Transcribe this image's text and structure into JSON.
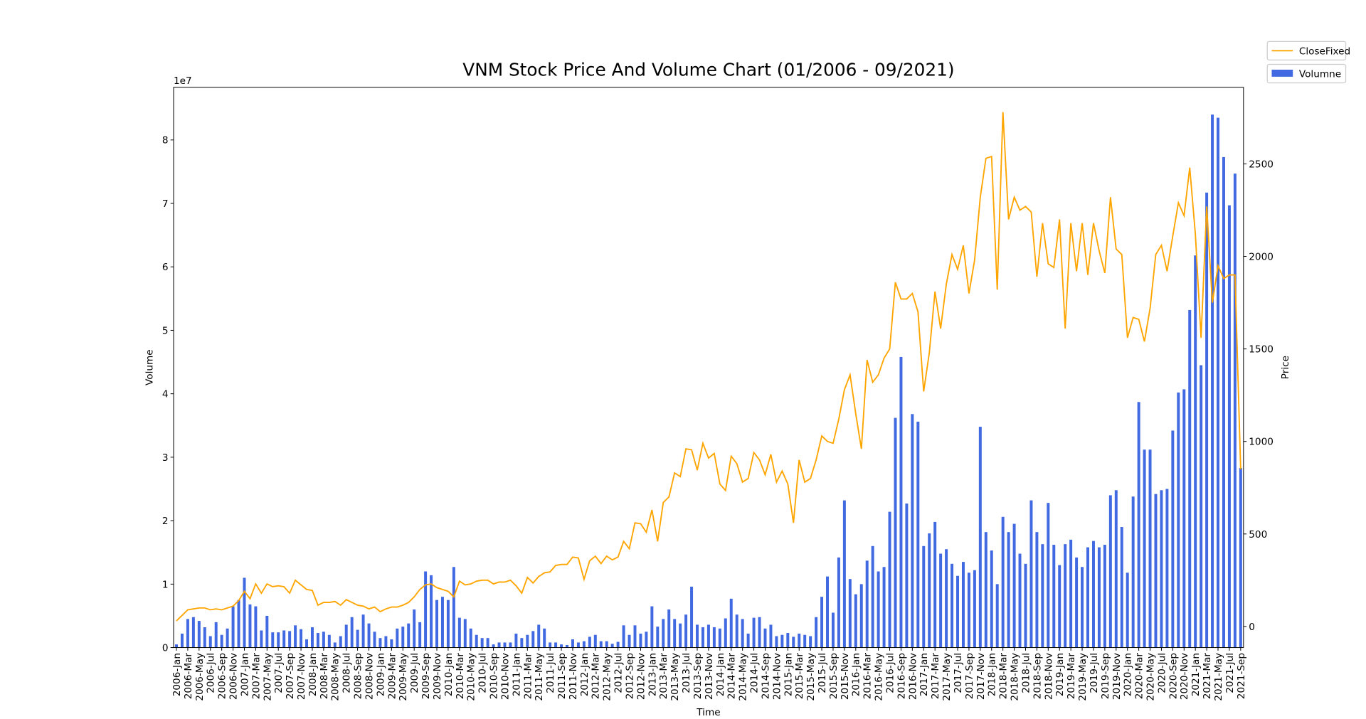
{
  "chart_data": {
    "type": "bar",
    "title": "VNM Stock Price And Volume Chart (01/2006 - 09/2021)",
    "xlabel": "Time",
    "ylabel": "Volume",
    "y2label": "Price",
    "y_offset_label": "1e7",
    "categories": [
      "2006-Jan",
      null,
      "2006-Mar",
      null,
      "2006-May",
      null,
      "2006-Jul",
      null,
      "2006-Sep",
      null,
      "2006-Nov",
      null,
      "2007-Jan",
      null,
      "2007-Mar",
      null,
      "2007-May",
      null,
      "2007-Jul",
      null,
      "2007-Sep",
      null,
      "2007-Nov",
      null,
      "2008-Jan",
      null,
      "2008-Mar",
      null,
      "2008-May",
      null,
      "2008-Jul",
      null,
      "2008-Sep",
      null,
      "2008-Nov",
      null,
      "2009-Jan",
      null,
      "2009-Mar",
      null,
      "2009-May",
      null,
      "2009-Jul",
      null,
      "2009-Sep",
      null,
      "2009-Nov",
      null,
      "2010-Jan",
      null,
      "2010-Mar",
      null,
      "2010-May",
      null,
      "2010-Jul",
      null,
      "2010-Sep",
      null,
      "2010-Nov",
      null,
      "2011-Jan",
      null,
      "2011-Mar",
      null,
      "2011-May",
      null,
      "2011-Jul",
      null,
      "2011-Sep",
      null,
      "2011-Nov",
      null,
      "2012-Jan",
      null,
      "2012-Mar",
      null,
      "2012-May",
      null,
      "2012-Jul",
      null,
      "2012-Sep",
      null,
      "2012-Nov",
      null,
      "2013-Jan",
      null,
      "2013-Mar",
      null,
      "2013-May",
      null,
      "2013-Jul",
      null,
      "2013-Sep",
      null,
      "2013-Nov",
      null,
      "2014-Jan",
      null,
      "2014-Mar",
      null,
      "2014-May",
      null,
      "2014-Jul",
      null,
      "2014-Sep",
      null,
      "2014-Nov",
      null,
      "2015-Jan",
      null,
      "2015-Mar",
      null,
      "2015-May",
      null,
      "2015-Jul",
      null,
      "2015-Sep",
      null,
      "2015-Nov",
      null,
      "2016-Jan",
      null,
      "2016-Mar",
      null,
      "2016-May",
      null,
      "2016-Jul",
      null,
      "2016-Sep",
      null,
      "2016-Nov",
      null,
      "2017-Jan",
      null,
      "2017-Mar",
      null,
      "2017-May",
      null,
      "2017-Jul",
      null,
      "2017-Sep",
      null,
      "2017-Nov",
      null,
      "2018-Jan",
      null,
      "2018-Mar",
      null,
      "2018-May",
      null,
      "2018-Jul",
      null,
      "2018-Sep",
      null,
      "2018-Nov",
      null,
      "2019-Jan",
      null,
      "2019-Mar",
      null,
      "2019-May",
      null,
      "2019-Jul",
      null,
      "2019-Sep",
      null,
      "2019-Nov",
      null,
      "2020-Jan",
      null,
      "2020-Mar",
      null,
      "2020-May",
      null,
      "2020-Jul",
      null,
      "2020-Sep",
      null,
      "2020-Nov",
      null,
      "2021-Jan",
      null,
      "2021-Mar",
      null,
      "2021-May",
      null,
      "2021-Jul",
      null,
      "2021-Sep"
    ],
    "series": [
      {
        "name": "Volumne",
        "type": "bar",
        "color": "#4169e1",
        "values": [
          0.05,
          0.22,
          0.45,
          0.48,
          0.42,
          0.32,
          0.18,
          0.4,
          0.2,
          0.3,
          0.65,
          0.75,
          1.1,
          0.68,
          0.65,
          0.27,
          0.5,
          0.24,
          0.24,
          0.27,
          0.26,
          0.35,
          0.29,
          0.13,
          0.32,
          0.23,
          0.25,
          0.2,
          0.08,
          0.18,
          0.36,
          0.48,
          0.28,
          0.52,
          0.38,
          0.25,
          0.15,
          0.18,
          0.13,
          0.3,
          0.33,
          0.38,
          0.6,
          0.4,
          1.2,
          1.14,
          0.75,
          0.8,
          0.75,
          1.27,
          0.47,
          0.45,
          0.3,
          0.2,
          0.15,
          0.15,
          0.05,
          0.08,
          0.08,
          0.08,
          0.22,
          0.15,
          0.2,
          0.26,
          0.36,
          0.3,
          0.08,
          0.08,
          0.05,
          0.04,
          0.13,
          0.08,
          0.1,
          0.17,
          0.2,
          0.1,
          0.1,
          0.06,
          0.09,
          0.35,
          0.2,
          0.35,
          0.22,
          0.25,
          0.65,
          0.33,
          0.45,
          0.6,
          0.45,
          0.38,
          0.52,
          0.96,
          0.36,
          0.32,
          0.36,
          0.32,
          0.3,
          0.46,
          0.77,
          0.52,
          0.45,
          0.22,
          0.47,
          0.48,
          0.3,
          0.36,
          0.18,
          0.2,
          0.23,
          0.17,
          0.22,
          0.2,
          0.18,
          0.48,
          0.8,
          1.12,
          0.55,
          1.42,
          2.32,
          1.08,
          0.84,
          1.0,
          1.37,
          1.6,
          1.2,
          1.27,
          2.14,
          3.62,
          4.58,
          2.27,
          3.68,
          3.56,
          1.6,
          1.8,
          1.98,
          1.48,
          1.55,
          1.32,
          1.13,
          1.35,
          1.18,
          1.22,
          3.48,
          1.82,
          1.53,
          1.0,
          2.06,
          1.82,
          1.95,
          1.48,
          1.32,
          2.32,
          1.82,
          1.63,
          2.28,
          1.62,
          1.3,
          1.63,
          1.7,
          1.42,
          1.27,
          1.58,
          1.68,
          1.58,
          1.62,
          2.4,
          2.48,
          1.9,
          1.18,
          2.38,
          3.87,
          3.12,
          3.12,
          2.42,
          2.48,
          2.5,
          3.42,
          4.02,
          4.07,
          5.32,
          6.18,
          4.45,
          7.17,
          8.4,
          8.35,
          7.73,
          6.97,
          7.47,
          2.83
        ]
      },
      {
        "name": "CloseFixed",
        "type": "line",
        "axis": "y2",
        "color": "#ffa500",
        "values": [
          30,
          60,
          90,
          95,
          100,
          100,
          90,
          95,
          90,
          100,
          110,
          140,
          190,
          150,
          230,
          180,
          230,
          215,
          220,
          215,
          180,
          250,
          225,
          200,
          195,
          115,
          130,
          130,
          135,
          115,
          145,
          130,
          115,
          110,
          95,
          105,
          80,
          95,
          105,
          105,
          115,
          130,
          160,
          200,
          225,
          230,
          210,
          200,
          190,
          160,
          245,
          225,
          230,
          245,
          250,
          250,
          230,
          240,
          240,
          250,
          220,
          180,
          265,
          235,
          270,
          290,
          295,
          330,
          335,
          335,
          375,
          370,
          255,
          355,
          380,
          340,
          380,
          360,
          375,
          460,
          420,
          560,
          555,
          510,
          630,
          460,
          670,
          700,
          830,
          810,
          960,
          955,
          845,
          990,
          910,
          935,
          770,
          735,
          920,
          880,
          780,
          800,
          940,
          900,
          820,
          930,
          780,
          840,
          770,
          560,
          900,
          780,
          800,
          900,
          1030,
          1000,
          990,
          1120,
          1280,
          1360,
          1150,
          960,
          1440,
          1320,
          1360,
          1450,
          1500,
          1860,
          1770,
          1770,
          1800,
          1700,
          1270,
          1480,
          1810,
          1610,
          1850,
          2010,
          1930,
          2060,
          1800,
          1980,
          2320,
          2530,
          2540,
          1820,
          2780,
          2200,
          2320,
          2250,
          2270,
          2240,
          1890,
          2180,
          1960,
          1940,
          2200,
          1610,
          2180,
          1920,
          2180,
          1900,
          2180,
          2030,
          1910,
          2320,
          2040,
          2010,
          1560,
          1670,
          1660,
          1540,
          1720,
          2010,
          2060,
          1920,
          2110,
          2290,
          2220,
          2480,
          2120,
          1560,
          2270,
          1750,
          1950,
          1880,
          1900,
          1900,
          850
        ]
      }
    ],
    "ylim": [
      0,
      8.83
    ],
    "yticks": [
      0,
      1,
      2,
      3,
      4,
      5,
      6,
      7,
      8
    ],
    "y2lim": [
      -114,
      2914
    ],
    "y2ticks": [
      0,
      500,
      1000,
      1500,
      2000,
      2500
    ],
    "grid": false,
    "legend": "upper right outside"
  }
}
